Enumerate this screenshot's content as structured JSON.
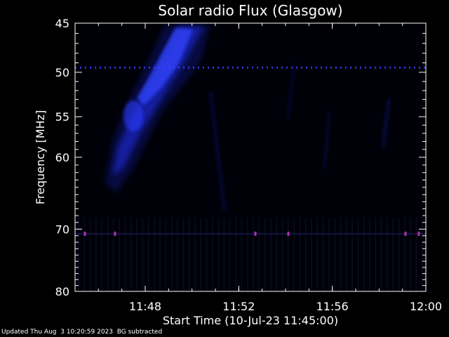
{
  "chart_data": {
    "type": "heatmap",
    "title": "Solar radio Flux (Glasgow)",
    "xlabel": "Start Time (10-Jul-23 11:45:00)",
    "ylabel": "Frequency [MHz]",
    "x_range": [
      "11:45",
      "12:00"
    ],
    "y_range": [
      45,
      80
    ],
    "y_scale": "log",
    "x_ticks": [
      "11:48",
      "11:52",
      "11:56",
      "12:00"
    ],
    "y_ticks": [
      45,
      50,
      55,
      60,
      70,
      80
    ],
    "colors": {
      "background": "#000008",
      "burst": "#2233ff",
      "interference": "#aa33aa",
      "axes": "#ffffff"
    },
    "interference_lines_mhz": [
      49.5,
      70.7
    ],
    "grid": false,
    "legend": "none"
  },
  "footer": {
    "updated": "Updated Thu Aug  3 10:20:59 2023",
    "note": "BG subtracted"
  }
}
